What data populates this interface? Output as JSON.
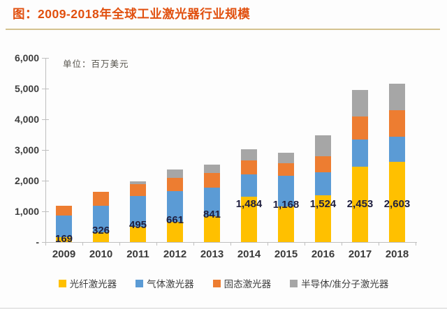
{
  "page": {
    "title": "图：2009-2018年全球工业激光器行业规模"
  },
  "chart_data": {
    "type": "bar",
    "stacked": true,
    "title": "图：2009-2018年全球工业激光器行业规模",
    "unit_label": "单位：百万美元",
    "categories": [
      "2009",
      "2010",
      "2011",
      "2012",
      "2013",
      "2014",
      "2015",
      "2016",
      "2017",
      "2018"
    ],
    "series": [
      {
        "name": "光纤激光器",
        "color": "#FFC000",
        "values": [
          169,
          326,
          495,
          661,
          841,
          1484,
          1168,
          1524,
          2453,
          2603
        ]
      },
      {
        "name": "气体激光器",
        "color": "#5B9BD5",
        "values": [
          695,
          855,
          1010,
          995,
          930,
          718,
          989,
          746,
          884,
          824
        ]
      },
      {
        "name": "固态激光器",
        "color": "#ED7D31",
        "values": [
          318,
          455,
          390,
          430,
          478,
          454,
          408,
          522,
          749,
          863
        ]
      },
      {
        "name": "半导体/准分子激光器",
        "color": "#A6A6A6",
        "values": [
          0,
          0,
          90,
          275,
          273,
          363,
          341,
          681,
          863,
          865
        ]
      }
    ],
    "data_labels": {
      "series": "光纤激光器",
      "values": [
        "169",
        "326",
        "495",
        "661",
        "841",
        "1,484",
        "1,168",
        "1,524",
        "2,453",
        "2,603"
      ]
    },
    "ylim": [
      0,
      6000
    ],
    "ytick_labels": [
      "6,000",
      "5,000",
      "4,000",
      "3,000",
      "2,000",
      "1,000",
      "-"
    ],
    "grid": false,
    "legend_position": "bottom"
  }
}
